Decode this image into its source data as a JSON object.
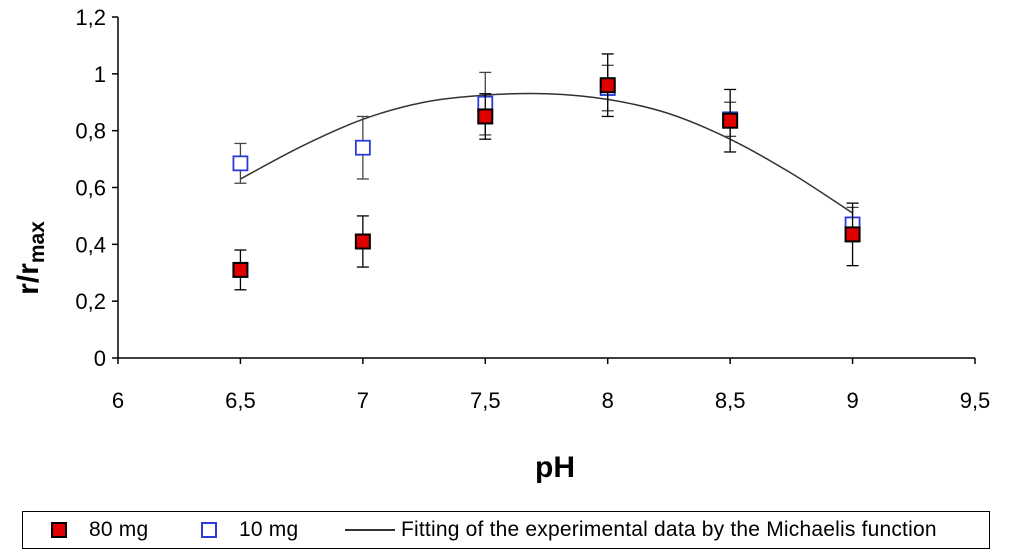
{
  "chart_data": {
    "type": "scatter",
    "title": "",
    "xlabel": "pH",
    "ylabel": {
      "main": "r/r",
      "sub": "max"
    },
    "xlim": [
      6,
      9.5
    ],
    "ylim": [
      0,
      1.2
    ],
    "x_ticks": [
      "6",
      "6,5",
      "7",
      "7,5",
      "8",
      "8,5",
      "9",
      "9,5"
    ],
    "y_ticks": [
      "0",
      "0,2",
      "0,4",
      "0,6",
      "0,8",
      "1",
      "1,2"
    ],
    "grid": false,
    "legend_position": "bottom",
    "series": [
      {
        "name": "80 mg",
        "marker": "filled-square",
        "color": "#e00000",
        "x": [
          6.5,
          7,
          7.5,
          8,
          8.5,
          9
        ],
        "y": [
          0.31,
          0.41,
          0.85,
          0.96,
          0.835,
          0.435
        ],
        "error": [
          0.07,
          0.09,
          0.08,
          0.11,
          0.11,
          0.11
        ]
      },
      {
        "name": "10 mg",
        "marker": "open-square",
        "color": "#2a3bd8",
        "x": [
          6.5,
          7,
          7.5,
          8,
          8.5,
          9
        ],
        "y": [
          0.685,
          0.74,
          0.895,
          0.95,
          0.84,
          0.47
        ],
        "error": [
          0.07,
          0.11,
          0.11,
          0.08,
          0.06,
          0.06
        ]
      },
      {
        "name": "Fitting of the experimental data by the Michaelis function",
        "marker": "line",
        "color": "#333333",
        "x": [
          6.5,
          6.75,
          7,
          7.25,
          7.5,
          7.75,
          8,
          8.25,
          8.5,
          8.75,
          9
        ],
        "y": [
          0.63,
          0.745,
          0.84,
          0.9,
          0.925,
          0.93,
          0.91,
          0.86,
          0.77,
          0.65,
          0.51
        ]
      }
    ]
  },
  "legend": {
    "items": [
      {
        "label": "80 mg",
        "swatch": "filled-square"
      },
      {
        "label": "10 mg",
        "swatch": "open-square"
      },
      {
        "label": "Fitting of the experimental data by the Michaelis function",
        "swatch": "line"
      }
    ]
  }
}
